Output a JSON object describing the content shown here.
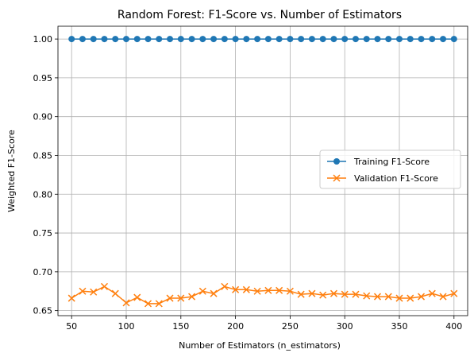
{
  "chart_data": {
    "type": "line",
    "title": "Random Forest: F1-Score vs. Number of Estimators",
    "xlabel": "Number of Estimators (n_estimators)",
    "ylabel": "Weighted F1-Score",
    "xlim": [
      37.5,
      412.5
    ],
    "ylim": [
      0.6435,
      1.0165
    ],
    "xticks": [
      50,
      100,
      150,
      200,
      250,
      300,
      350,
      400
    ],
    "yticks": [
      0.65,
      0.7,
      0.75,
      0.8,
      0.85,
      0.9,
      0.95,
      1.0
    ],
    "ytick_labels": [
      "0.65",
      "0.70",
      "0.75",
      "0.80",
      "0.85",
      "0.90",
      "0.95",
      "1.00"
    ],
    "grid": true,
    "legend_position": "center-right",
    "x": [
      50,
      60,
      70,
      80,
      90,
      100,
      110,
      120,
      130,
      140,
      150,
      160,
      170,
      180,
      190,
      200,
      210,
      220,
      230,
      240,
      250,
      260,
      270,
      280,
      290,
      300,
      310,
      320,
      330,
      340,
      350,
      360,
      370,
      380,
      390,
      400
    ],
    "series": [
      {
        "name": "Training F1-Score",
        "color": "#1f77b4",
        "marker": "circle",
        "values": [
          1.0,
          1.0,
          1.0,
          1.0,
          1.0,
          1.0,
          1.0,
          1.0,
          1.0,
          1.0,
          1.0,
          1.0,
          1.0,
          1.0,
          1.0,
          1.0,
          1.0,
          1.0,
          1.0,
          1.0,
          1.0,
          1.0,
          1.0,
          1.0,
          1.0,
          1.0,
          1.0,
          1.0,
          1.0,
          1.0,
          1.0,
          1.0,
          1.0,
          1.0,
          1.0,
          1.0
        ]
      },
      {
        "name": "Validation F1-Score",
        "color": "#ff7f0e",
        "marker": "x",
        "values": [
          0.666,
          0.675,
          0.674,
          0.681,
          0.672,
          0.66,
          0.667,
          0.659,
          0.659,
          0.666,
          0.666,
          0.668,
          0.675,
          0.672,
          0.681,
          0.677,
          0.677,
          0.675,
          0.676,
          0.676,
          0.675,
          0.671,
          0.672,
          0.67,
          0.672,
          0.671,
          0.671,
          0.669,
          0.668,
          0.668,
          0.666,
          0.666,
          0.668,
          0.672,
          0.668,
          0.672
        ]
      }
    ]
  }
}
